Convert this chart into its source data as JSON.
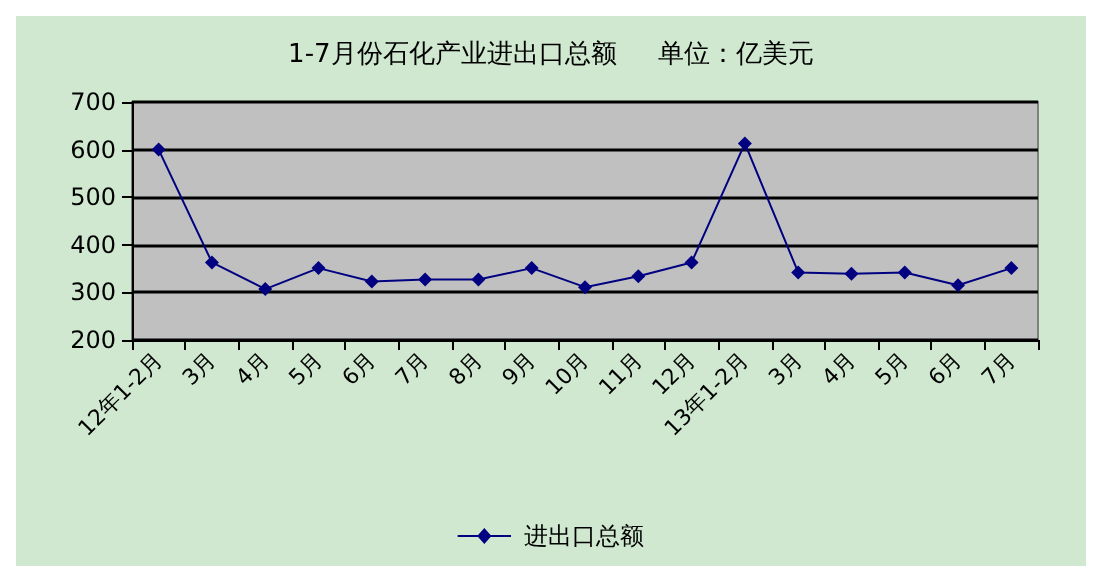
{
  "chart_data": {
    "type": "line",
    "title": "1-7月份石化产业进出口总额     单位：亿美元",
    "categories": [
      "12年1-2月",
      "3月",
      "4月",
      "5月",
      "6月",
      "7月",
      "8月",
      "9月",
      "10月",
      "11月",
      "12月",
      "13年1-2月",
      "3月",
      "4月",
      "5月",
      "6月",
      "7月"
    ],
    "series": [
      {
        "name": "进出口总额",
        "color": "#000080",
        "values": [
          600,
          363,
          307,
          351,
          323,
          327,
          327,
          351,
          311,
          334,
          363,
          613,
          342,
          339,
          342,
          315,
          351
        ]
      }
    ],
    "ylim": [
      200,
      700
    ],
    "yticks": [
      200,
      300,
      400,
      500,
      600,
      700
    ],
    "grid": "y",
    "legend": "bottom",
    "marker": "diamond",
    "line_style": "solid"
  }
}
